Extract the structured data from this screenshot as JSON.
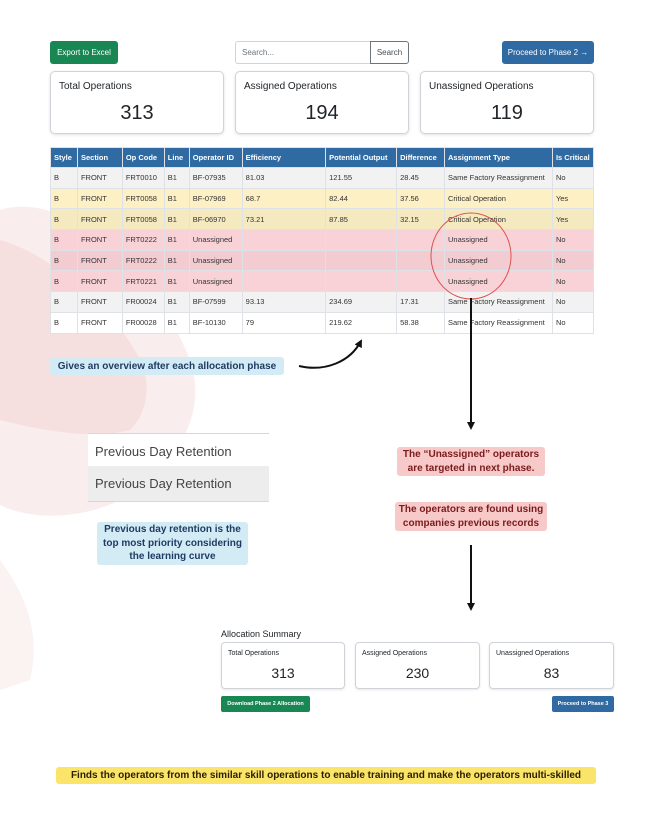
{
  "toolbar": {
    "export_label": "Export to Excel",
    "search_placeholder": "Search...",
    "search_button": "Search",
    "proceed_label": "Proceed to Phase 2 →"
  },
  "stats": [
    {
      "title": "Total Operations",
      "value": "313"
    },
    {
      "title": "Assigned Operations",
      "value": "194"
    },
    {
      "title": "Unassigned Operations",
      "value": "119"
    }
  ],
  "table": {
    "headers": [
      "Style",
      "Section",
      "Op Code",
      "Line",
      "Operator ID",
      "Efficiency",
      "Potential Output",
      "Difference",
      "Assignment Type",
      "Is Critical"
    ],
    "rows": [
      {
        "status": "normal",
        "cells": [
          "B",
          "FRONT",
          "FRT0010",
          "B1",
          "BF-07935",
          "81.03",
          "121.55",
          "28.45",
          "Same Factory Reassignment",
          "No"
        ]
      },
      {
        "status": "critical",
        "cells": [
          "B",
          "FRONT",
          "FRT0058",
          "B1",
          "BF-07969",
          "68.7",
          "82.44",
          "37.56",
          "Critical Operation",
          "Yes"
        ]
      },
      {
        "status": "critical",
        "cells": [
          "B",
          "FRONT",
          "FRT0058",
          "B1",
          "BF-06970",
          "73.21",
          "87.85",
          "32.15",
          "Critical Operation",
          "Yes"
        ]
      },
      {
        "status": "unassigned",
        "cells": [
          "B",
          "FRONT",
          "FRT0222",
          "B1",
          "Unassigned",
          "",
          "",
          "",
          "Unassigned",
          "No"
        ]
      },
      {
        "status": "unassigned",
        "cells": [
          "B",
          "FRONT",
          "FRT0222",
          "B1",
          "Unassigned",
          "",
          "",
          "",
          "Unassigned",
          "No"
        ]
      },
      {
        "status": "unassigned",
        "cells": [
          "B",
          "FRONT",
          "FRT0221",
          "B1",
          "Unassigned",
          "",
          "",
          "",
          "Unassigned",
          "No"
        ]
      },
      {
        "status": "normal",
        "cells": [
          "B",
          "FRONT",
          "FR00024",
          "B1",
          "BF-07599",
          "93.13",
          "234.69",
          "17.31",
          "Same Factory Reassignment",
          "No"
        ]
      },
      {
        "status": "normal",
        "cells": [
          "B",
          "FRONT",
          "FR00028",
          "B1",
          "BF-10130",
          "79",
          "219.62",
          "58.38",
          "Same Factory Reassignment",
          "No"
        ]
      }
    ]
  },
  "annotations": {
    "overview": "Gives an overview after each allocation phase",
    "retention_note": "Previous day retention is the top most priority considering the learning curve",
    "unassigned_next": "The “Unassigned” operators are targeted in next phase.",
    "found_records": "The operators are found using companies previous records",
    "similar_skill": "Finds the operators from the similar skill operations to enable training and make the operators multi-skilled"
  },
  "retention": {
    "row1": "Previous Day Retention",
    "row2": "Previous Day Retention"
  },
  "summary": {
    "title": "Allocation Summary",
    "cards": [
      {
        "title": "Total Operations",
        "value": "313"
      },
      {
        "title": "Assigned Operations",
        "value": "230"
      },
      {
        "title": "Unassigned Operations",
        "value": "83"
      }
    ],
    "download_label": "Download Phase 2 Allocation",
    "proceed_label": "Proceed to Phase 3"
  },
  "colors": {
    "primary": "#2f6aa3",
    "success": "#198754",
    "critical_row": "#fdf0c4",
    "unassigned_row": "#f9d2d7",
    "highlight_circle": "#d9534f"
  }
}
